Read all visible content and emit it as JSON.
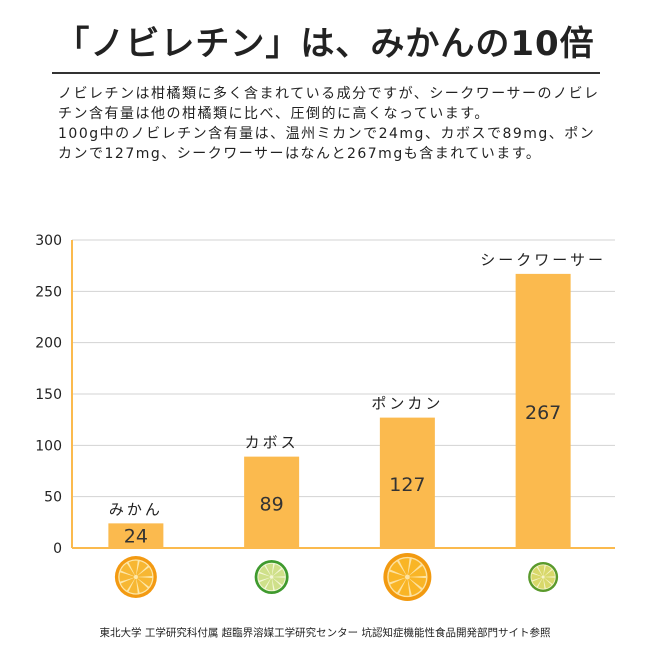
{
  "title": "「ノビレチン」は、みかんの10倍",
  "description": {
    "p1": "ノビレチンは柑橘類に多く含まれている成分ですが、シークワーサーのノビレチン含有量は他の柑橘類に比べ、圧倒的に高くなっています。",
    "p2": "100g中のノビレチン含有量は、温州ミカンで24mg、カボスで89mg、ポンカンで127mg、シークワーサーはなんと267mgも含まれています。"
  },
  "chart_data": {
    "type": "bar",
    "categories": [
      "みかん",
      "カボス",
      "ポンカン",
      "シークワーサー"
    ],
    "values": [
      24,
      89,
      127,
      267
    ],
    "ylim": [
      0,
      300
    ],
    "yticks": [
      "0",
      "50",
      "100",
      "150",
      "200",
      "250",
      "300"
    ],
    "grid": true,
    "legend": "none",
    "bar_color": "#fbba4e",
    "fruit_icons": [
      "orange-slice-icon",
      "lime-slice-icon",
      "ponkan-slice-icon",
      "shikuwasa-slice-icon"
    ]
  },
  "source": "東北大学 工学研究科付属 超臨界溶媒工学研究センター 坑認知症機能性食品開発部門サイト参照"
}
